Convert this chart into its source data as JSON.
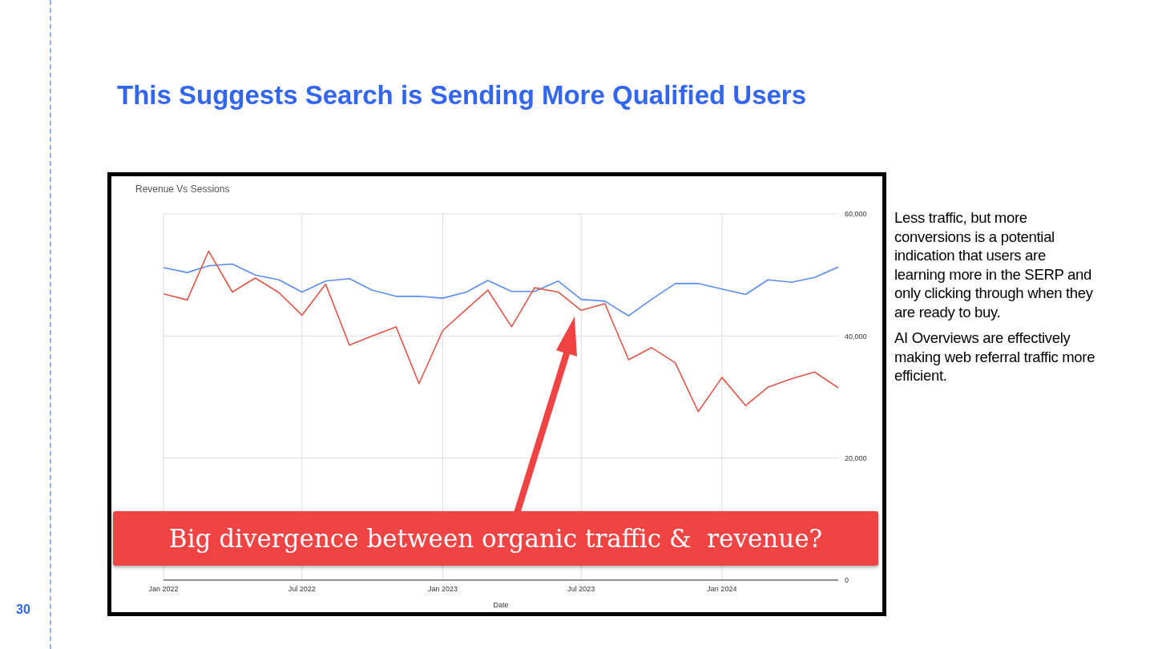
{
  "chart_data": {
    "type": "line",
    "title": "This Suggests Search is Sending More Qualified Users",
    "subtitle": "Revenue Vs Sessions",
    "xlabel": "Date",
    "x": [
      "2022-01",
      "2022-02",
      "2022-03",
      "2022-04",
      "2022-05",
      "2022-06",
      "2022-07",
      "2022-08",
      "2022-09",
      "2022-10",
      "2022-11",
      "2022-12",
      "2023-01",
      "2023-02",
      "2023-03",
      "2023-04",
      "2023-05",
      "2023-06",
      "2023-07",
      "2023-08",
      "2023-09",
      "2023-10",
      "2023-11",
      "2023-12",
      "2024-01",
      "2024-02",
      "2024-03",
      "2024-04",
      "2024-05",
      "2024-06"
    ],
    "series": [
      {
        "color": "#5b8def",
        "values": [
          51200,
          50400,
          51500,
          51800,
          50000,
          49200,
          47200,
          49000,
          49400,
          47500,
          46500,
          46500,
          46200,
          47200,
          49100,
          47300,
          47300,
          49000,
          46000,
          45700,
          43300,
          46000,
          48600,
          48600,
          47700,
          46800,
          49200,
          48800,
          49600,
          51300
        ]
      },
      {
        "color": "#e0554a",
        "values": [
          46900,
          45900,
          53900,
          47200,
          49500,
          47100,
          43400,
          48500,
          38500,
          40000,
          41500,
          32200,
          40900,
          44400,
          47500,
          41500,
          47900,
          47200,
          44200,
          45300,
          36100,
          38100,
          35600,
          27600,
          33200,
          28600,
          31600,
          33000,
          34100,
          31500
        ]
      }
    ],
    "xlim": [
      "2022-01",
      "2024-06"
    ],
    "xticks": [
      {
        "value": "2022-01",
        "label": "Jan 2022"
      },
      {
        "value": "2022-07",
        "label": "Jul 2022"
      },
      {
        "value": "2023-01",
        "label": "Jan 2023"
      },
      {
        "value": "2023-07",
        "label": "Jul 2023"
      },
      {
        "value": "2024-01",
        "label": "Jan 2024"
      }
    ],
    "ylim": [
      0,
      60000
    ],
    "yticks": [
      {
        "value": 0,
        "label": "0"
      },
      {
        "value": 20000,
        "label": "20,000"
      },
      {
        "value": 40000,
        "label": "40,000"
      },
      {
        "value": 60000,
        "label": "60,000"
      }
    ],
    "grid": true,
    "marker": "none",
    "line_style": "solid",
    "annotations": [
      "Big divergence between organic traffic &  revenue?",
      "Less traffic, but more conversions is a potential indication that users are learning more in the SERP and only clicking through when they are ready to buy.",
      "AI Overviews are effectively making web referral traffic more efficient.",
      "30"
    ]
  }
}
